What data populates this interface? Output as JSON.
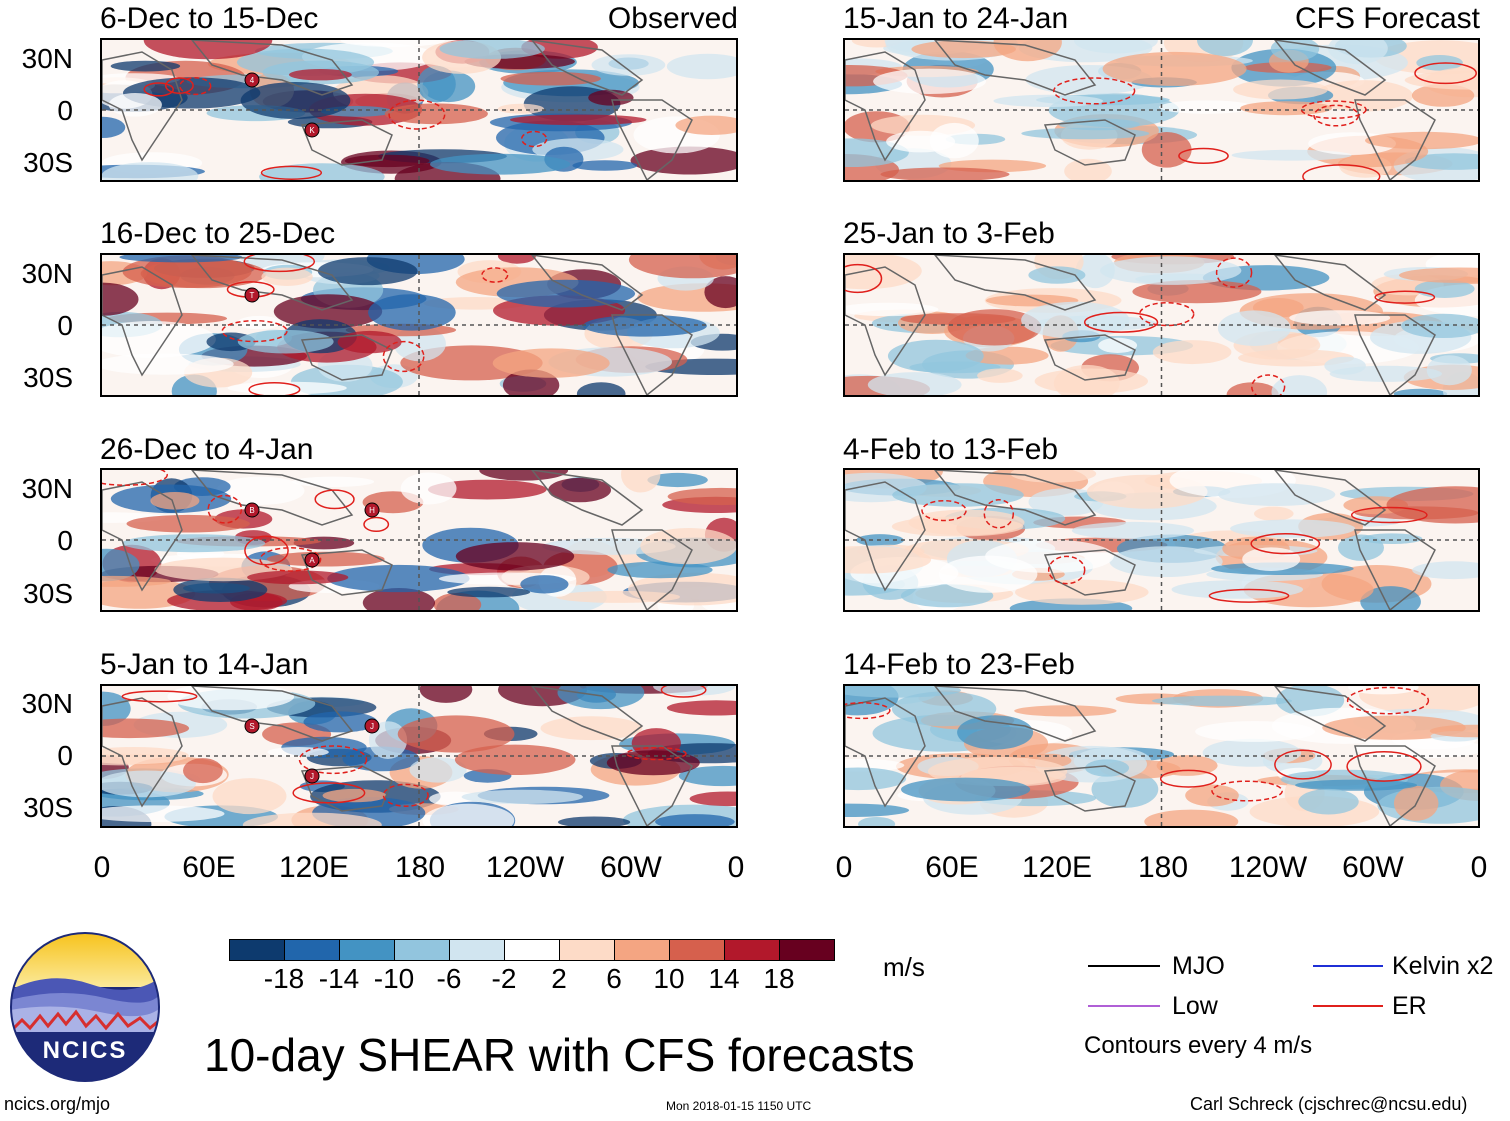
{
  "left_column": {
    "tag": "Observed",
    "panels": [
      {
        "title": "6-Dec to 15-Dec",
        "storms": [
          "4",
          "K"
        ]
      },
      {
        "title": "16-Dec to 25-Dec",
        "storms": [
          "T"
        ]
      },
      {
        "title": "26-Dec to 4-Jan",
        "storms": [
          "B",
          "A",
          "H"
        ]
      },
      {
        "title": "5-Jan to 14-Jan",
        "storms": [
          "S",
          "J",
          "J"
        ]
      }
    ]
  },
  "right_column": {
    "tag": "CFS Forecast",
    "panels": [
      {
        "title": "15-Jan to 24-Jan"
      },
      {
        "title": "25-Jan to 3-Feb"
      },
      {
        "title": "4-Feb to 13-Feb"
      },
      {
        "title": "14-Feb to 23-Feb"
      }
    ]
  },
  "lat_labels": [
    "30N",
    "0",
    "30S"
  ],
  "lon_labels": [
    "0",
    "60E",
    "120E",
    "180",
    "120W",
    "60W",
    "0"
  ],
  "colorbar": {
    "colors": [
      "#0d3a6e",
      "#2166ac",
      "#4393c3",
      "#92c5de",
      "#d1e5f0",
      "#ffffff",
      "#fddbc7",
      "#f4a582",
      "#d6604d",
      "#b2182b",
      "#67001f"
    ],
    "labels": [
      "-18",
      "-14",
      "-10",
      "-6",
      "-2",
      "2",
      "6",
      "10",
      "14",
      "18"
    ],
    "units": "m/s"
  },
  "legend": {
    "items": [
      {
        "name": "MJO",
        "color": "#000000"
      },
      {
        "name": "Kelvin x2",
        "color": "#1f2fd6"
      },
      {
        "name": "Low",
        "color": "#b05fd6"
      },
      {
        "name": "ER",
        "color": "#e0201c"
      }
    ],
    "note": "Contours every 4 m/s"
  },
  "logo_text": "NCICS",
  "main_title": "10-day SHEAR with CFS forecasts",
  "footer": {
    "left": "ncics.org/mjo",
    "center": "Mon 2018-01-15 1150 UTC",
    "right": "Carl Schreck (cjschrec@ncsu.edu)"
  }
}
